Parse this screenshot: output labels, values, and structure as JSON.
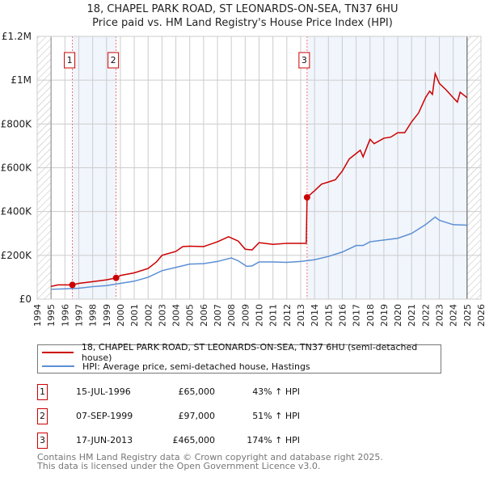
{
  "title": "18, CHAPEL PARK ROAD, ST LEONARDS-ON-SEA, TN37 6HU",
  "subtitle": "Price paid vs. HM Land Registry's House Price Index (HPI)",
  "chart_data": {
    "type": "line",
    "xlim": [
      1994,
      2026
    ],
    "ylim": [
      0,
      1200000
    ],
    "xticks": [
      "1994",
      "1995",
      "1996",
      "1997",
      "1998",
      "1999",
      "2000",
      "2001",
      "2002",
      "2003",
      "2004",
      "2005",
      "2006",
      "2007",
      "2008",
      "2009",
      "2010",
      "2011",
      "2012",
      "2013",
      "2014",
      "2015",
      "2016",
      "2017",
      "2018",
      "2019",
      "2020",
      "2021",
      "2022",
      "2023",
      "2024",
      "2025",
      "2026"
    ],
    "yticks": [
      {
        "v": 0,
        "label": "£0"
      },
      {
        "v": 200000,
        "label": "£200K"
      },
      {
        "v": 400000,
        "label": "£400K"
      },
      {
        "v": 600000,
        "label": "£600K"
      },
      {
        "v": 800000,
        "label": "£800K"
      },
      {
        "v": 1000000,
        "label": "£1M"
      },
      {
        "v": 1200000,
        "label": "£1.2M"
      }
    ],
    "data_range": [
      1995,
      2025
    ],
    "series": [
      {
        "name": "18, CHAPEL PARK ROAD, ST LEONARDS-ON-SEA, TN37 6HU (semi-detached house)",
        "color": "#cc0000",
        "x": [
          1995,
          1995.5,
          1996.54,
          1997,
          1998,
          1999,
          1999.69,
          2000,
          2001,
          2002,
          2002.6,
          2003,
          2004,
          2004.5,
          2005,
          2006,
          2007,
          2007.8,
          2008.5,
          2009,
          2009.5,
          2010,
          2011,
          2012,
          2013.4,
          2013.46,
          2014,
          2014.5,
          2015,
          2015.5,
          2016,
          2016.5,
          2017,
          2017.3,
          2017.5,
          2018,
          2018.3,
          2019,
          2019.5,
          2020,
          2020.5,
          2021,
          2021.5,
          2022,
          2022.3,
          2022.5,
          2022.7,
          2023,
          2023.5,
          2024,
          2024.3,
          2024.5,
          2025
        ],
        "y": [
          58000,
          65000,
          65000,
          72000,
          80000,
          88000,
          97000,
          108000,
          120000,
          140000,
          170000,
          200000,
          218000,
          240000,
          242000,
          240000,
          262000,
          285000,
          265000,
          228000,
          225000,
          258000,
          250000,
          255000,
          255000,
          465000,
          495000,
          525000,
          535000,
          545000,
          585000,
          640000,
          665000,
          680000,
          650000,
          730000,
          710000,
          735000,
          740000,
          760000,
          760000,
          810000,
          850000,
          920000,
          950000,
          935000,
          1030000,
          985000,
          955000,
          920000,
          900000,
          945000,
          920000
        ]
      },
      {
        "name": "HPI: Average price, semi-detached house, Hastings",
        "color": "#5b8fd4",
        "x": [
          1995,
          1996,
          1997,
          1998,
          1999,
          2000,
          2001,
          2002,
          2003,
          2004,
          2005,
          2006,
          2007,
          2008,
          2008.5,
          2009.1,
          2009.5,
          2010,
          2011,
          2012,
          2013,
          2014,
          2015,
          2016,
          2017,
          2017.5,
          2018,
          2019,
          2020,
          2021,
          2022,
          2022.7,
          2023,
          2024,
          2025
        ],
        "y": [
          45000,
          47000,
          50000,
          57000,
          62000,
          72000,
          82000,
          100000,
          130000,
          145000,
          160000,
          162000,
          172000,
          188000,
          175000,
          150000,
          152000,
          170000,
          170000,
          168000,
          172000,
          180000,
          195000,
          215000,
          245000,
          245000,
          262000,
          270000,
          278000,
          300000,
          340000,
          375000,
          360000,
          340000,
          338000
        ]
      }
    ],
    "sales": [
      {
        "id": "1",
        "x": 1996.54,
        "date": "15-JUL-1996",
        "price": 65000,
        "price_label": "£65,000",
        "hpi": "43% ↑ HPI"
      },
      {
        "id": "2",
        "x": 1999.69,
        "date": "07-SEP-1999",
        "price": 97000,
        "price_label": "£97,000",
        "hpi": "51% ↑ HPI"
      },
      {
        "id": "3",
        "x": 2013.46,
        "date": "17-JUN-2013",
        "price": 465000,
        "price_label": "£465,000",
        "hpi": "174% ↑ HPI"
      }
    ]
  },
  "legend": {
    "property": "18, CHAPEL PARK ROAD, ST LEONARDS-ON-SEA, TN37 6HU (semi-detached house)",
    "hpi": "HPI: Average price, semi-detached house, Hastings"
  },
  "footer": {
    "line1": "Contains HM Land Registry data © Crown copyright and database right 2025.",
    "line2": "This data is licensed under the Open Government Licence v3.0."
  }
}
